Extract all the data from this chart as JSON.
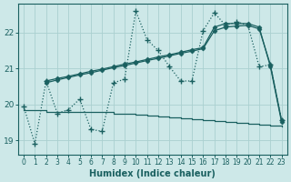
{
  "xlabel": "Humidex (Indice chaleur)",
  "bg_color": "#cde8e8",
  "grid_color": "#aad0d0",
  "line_color": "#1a6060",
  "xlim": [
    -0.5,
    23.5
  ],
  "ylim": [
    18.6,
    22.8
  ],
  "yticks": [
    19,
    20,
    21,
    22
  ],
  "xticks": [
    0,
    1,
    2,
    3,
    4,
    5,
    6,
    7,
    8,
    9,
    10,
    11,
    12,
    13,
    14,
    15,
    16,
    17,
    18,
    19,
    20,
    21,
    22,
    23
  ],
  "line_dotted_x": [
    0,
    1,
    2,
    3,
    4,
    5,
    6,
    7,
    8,
    9,
    10,
    11,
    12,
    13,
    14,
    15,
    16,
    17,
    18,
    19,
    20,
    21,
    22,
    23
  ],
  "line_dotted_y": [
    19.95,
    18.9,
    20.65,
    19.75,
    19.85,
    20.15,
    19.3,
    19.25,
    20.6,
    20.7,
    22.6,
    21.8,
    21.5,
    21.05,
    20.65,
    20.65,
    22.05,
    22.55,
    22.2,
    22.3,
    22.2,
    21.05,
    21.1,
    19.55
  ],
  "line_solid1_x": [
    2,
    3,
    4,
    5,
    6,
    7,
    8,
    9,
    10,
    11,
    12,
    13,
    14,
    15,
    16,
    17,
    18,
    19,
    20,
    21,
    22,
    23
  ],
  "line_solid1_y": [
    20.65,
    20.72,
    20.78,
    20.85,
    20.92,
    20.98,
    21.05,
    21.12,
    21.18,
    21.25,
    21.32,
    21.38,
    21.45,
    21.52,
    21.58,
    22.15,
    22.25,
    22.25,
    22.25,
    22.15,
    21.05,
    19.5
  ],
  "line_solid2_x": [
    2,
    3,
    4,
    5,
    6,
    7,
    8,
    9,
    10,
    11,
    12,
    13,
    14,
    15,
    16,
    17,
    18,
    19,
    20,
    21,
    22,
    23
  ],
  "line_solid2_y": [
    20.6,
    20.68,
    20.75,
    20.82,
    20.88,
    20.95,
    21.02,
    21.08,
    21.15,
    21.22,
    21.28,
    21.35,
    21.42,
    21.48,
    21.55,
    22.05,
    22.15,
    22.18,
    22.2,
    22.1,
    21.1,
    19.55
  ],
  "line_flat_x": [
    0,
    1,
    2,
    3,
    4,
    5,
    6,
    7,
    8,
    9,
    10,
    11,
    12,
    13,
    14,
    15,
    16,
    17,
    18,
    19,
    20,
    21,
    22,
    23
  ],
  "line_flat_y": [
    19.85,
    19.85,
    19.8,
    19.8,
    19.78,
    19.78,
    19.78,
    19.78,
    19.75,
    19.73,
    19.7,
    19.68,
    19.65,
    19.63,
    19.6,
    19.58,
    19.55,
    19.53,
    19.5,
    19.48,
    19.45,
    19.43,
    19.4,
    19.38
  ]
}
